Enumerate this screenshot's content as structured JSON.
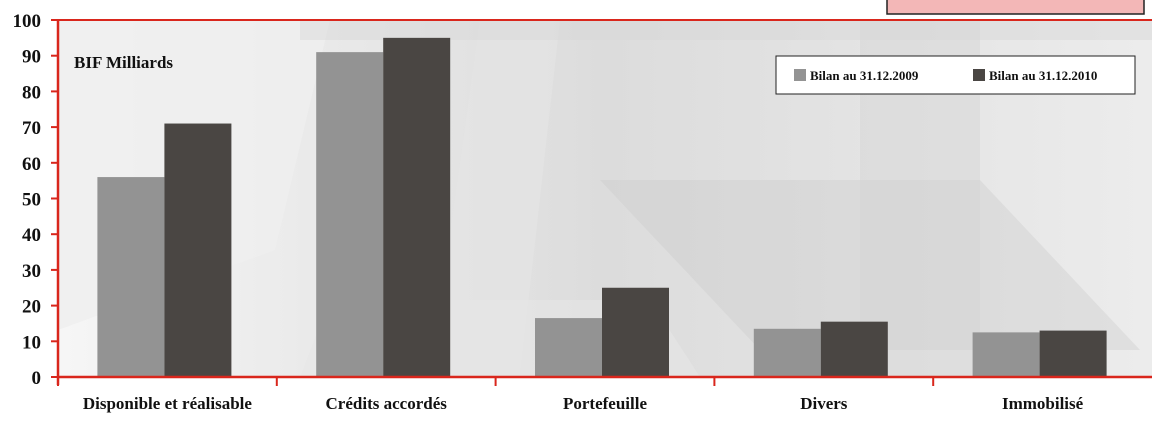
{
  "chart_data": {
    "type": "bar",
    "unit_label": "BIF Milliards",
    "categories": [
      "Disponible et réalisable",
      "Crédits accordés",
      "Portefeuille",
      "Divers",
      "Immobilisé"
    ],
    "series": [
      {
        "name": "Bilan au 31.12.2009",
        "color": "#939393",
        "values": [
          56,
          91,
          16.5,
          13.5,
          12.5
        ]
      },
      {
        "name": "Bilan au 31.12.2010",
        "color": "#4a4643",
        "values": [
          71,
          95,
          25,
          15.5,
          13
        ]
      }
    ],
    "ylim": [
      0,
      100
    ],
    "yticks": [
      "0",
      "10",
      "20",
      "30",
      "40",
      "50",
      "60",
      "70",
      "80",
      "90",
      "100"
    ],
    "legend_position": "top-right",
    "axis_color": "#d9261c",
    "corner_box_color": "#f3b7b7"
  }
}
